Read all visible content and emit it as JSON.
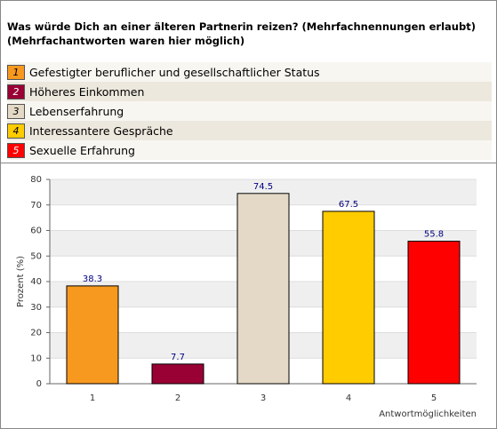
{
  "header": {
    "title": "Was würde Dich an einer älteren Partnerin reizen? (Mehrfachnennungen erlaubt)",
    "subtitle": "(Mehrfachantworten waren hier möglich)"
  },
  "chart_data": {
    "type": "bar",
    "categories": [
      "1",
      "2",
      "3",
      "4",
      "5"
    ],
    "legend": [
      "Gefestigter beruflicher und gesellschaftlicher Status",
      "Höheres Einkommen",
      "Lebenserfahrung",
      "Interessantere Gespräche",
      "Sexuelle Erfahrung"
    ],
    "values": [
      38.3,
      7.7,
      74.5,
      67.5,
      55.8
    ],
    "colors": [
      "#f7991f",
      "#990033",
      "#e3d9c6",
      "#ffcc00",
      "#ff0000"
    ],
    "ylim": [
      0,
      80
    ],
    "yticks": [
      0,
      10,
      20,
      30,
      40,
      50,
      60,
      70,
      80
    ],
    "grid": true,
    "ylabel": "Prozent (%)",
    "xlabel": "Antwortmöglichkeiten"
  }
}
